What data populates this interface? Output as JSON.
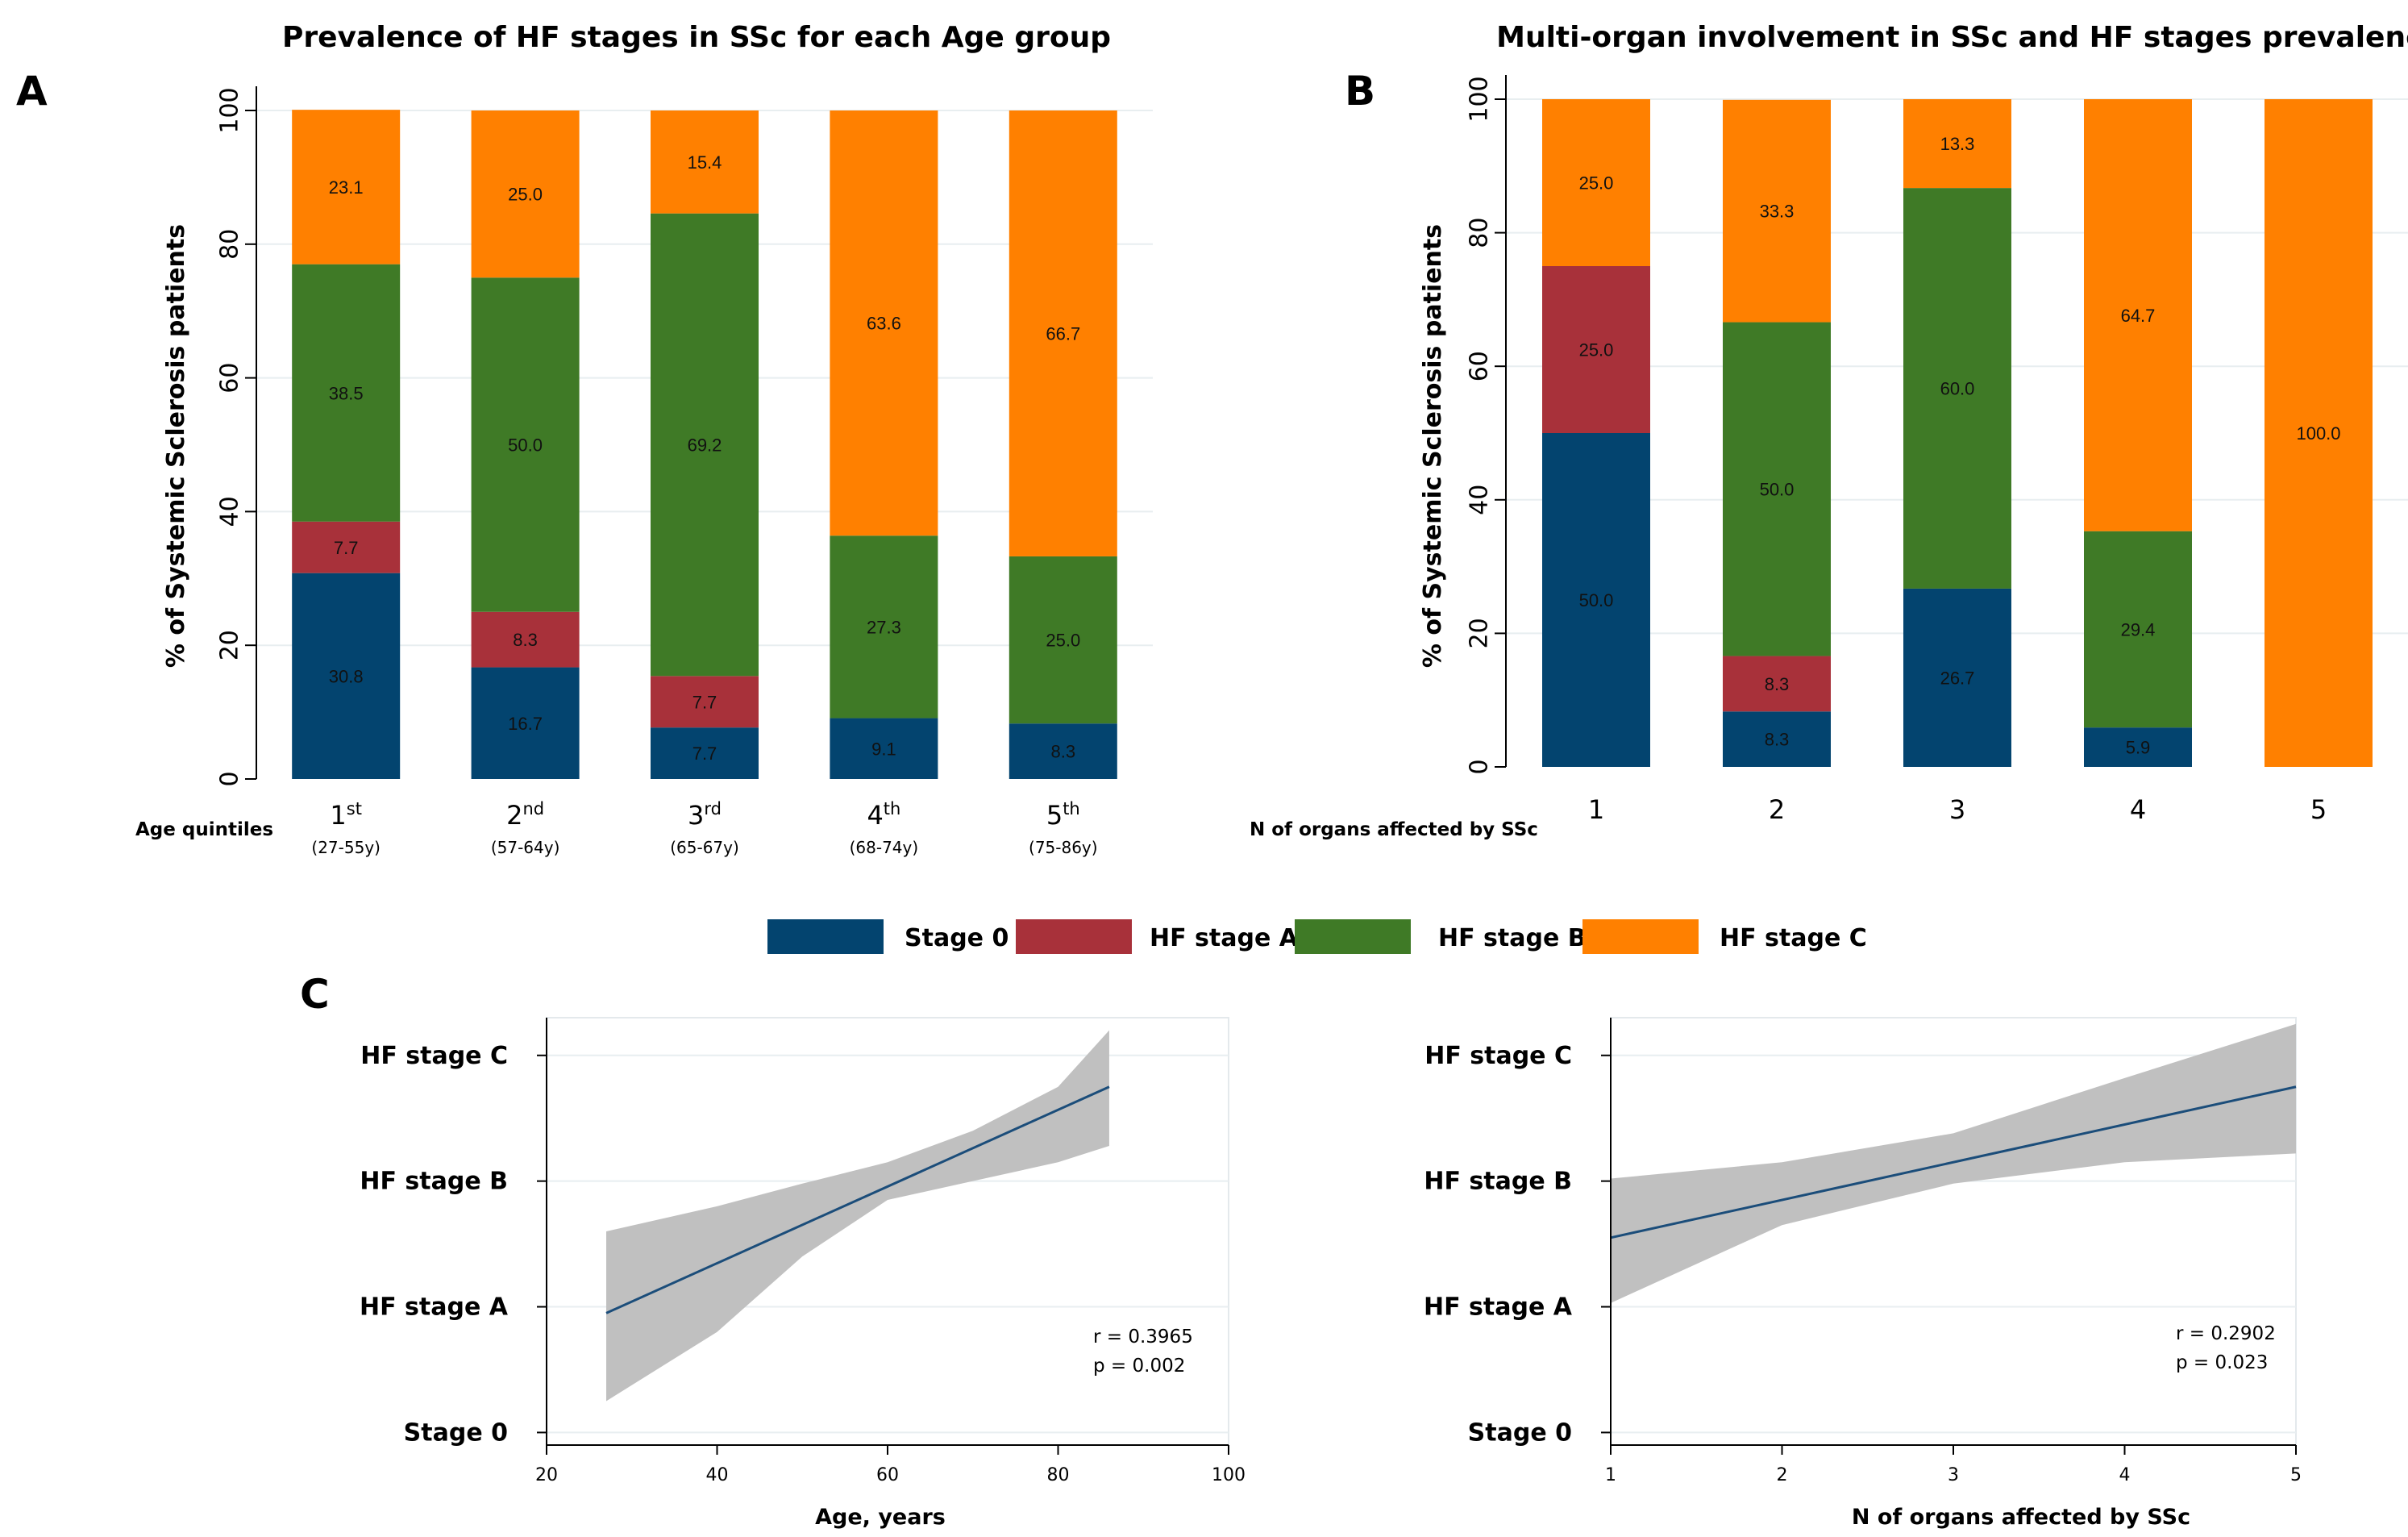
{
  "figure": {
    "panel_a_label": "A",
    "panel_b_label": "B",
    "panel_c_label": "C",
    "colors": {
      "stage0": "#03446f",
      "hfA": "#a8313a",
      "hfB": "#3f7a26",
      "hfC": "#ff8000",
      "band": "#c0c0c0",
      "fitline": "#1b4d7a",
      "axis": "#000000",
      "grid": "#e8eef0"
    }
  },
  "legend": {
    "items": [
      {
        "key": "stage0",
        "label": "Stage 0"
      },
      {
        "key": "hfA",
        "label": "HF stage A"
      },
      {
        "key": "hfB",
        "label": "HF stage B"
      },
      {
        "key": "hfC",
        "label": "HF stage C"
      }
    ]
  },
  "chart_data": [
    {
      "id": "A",
      "type": "bar",
      "stacked": true,
      "title": "Prevalence of HF stages in SSc for each Age group",
      "ylabel": "% of Systemic Sclerosis patients",
      "xlabel": "Age quintiles",
      "ylim": [
        0,
        100
      ],
      "yticks": [
        0,
        20,
        40,
        60,
        80,
        100
      ],
      "categories": [
        {
          "num": "1",
          "sup": "st",
          "range": "(27-55y)"
        },
        {
          "num": "2",
          "sup": "nd",
          "range": "(57-64y)"
        },
        {
          "num": "3",
          "sup": "rd",
          "range": "(65-67y)"
        },
        {
          "num": "4",
          "sup": "th",
          "range": "(68-74y)"
        },
        {
          "num": "5",
          "sup": "th",
          "range": "(75-86y)"
        }
      ],
      "series": [
        {
          "key": "stage0",
          "name": "Stage 0",
          "values": [
            30.8,
            16.7,
            7.7,
            9.1,
            8.3
          ]
        },
        {
          "key": "hfA",
          "name": "HF stage A",
          "values": [
            7.7,
            8.3,
            7.7,
            0,
            0
          ]
        },
        {
          "key": "hfB",
          "name": "HF stage B",
          "values": [
            38.5,
            50.0,
            69.2,
            27.3,
            25.0
          ]
        },
        {
          "key": "hfC",
          "name": "HF stage C",
          "values": [
            23.1,
            25.0,
            15.4,
            63.6,
            66.7
          ]
        }
      ]
    },
    {
      "id": "B",
      "type": "bar",
      "stacked": true,
      "title": "Multi-organ involvement in SSc and HF stages prevalence",
      "ylabel": "% of Systemic Sclerosis patients",
      "xlabel": "N of organs affected by SSc",
      "ylim": [
        0,
        100
      ],
      "yticks": [
        0,
        20,
        40,
        60,
        80,
        100
      ],
      "categories": [
        "1",
        "2",
        "3",
        "4",
        "5"
      ],
      "series": [
        {
          "key": "stage0",
          "name": "Stage 0",
          "values": [
            50.0,
            8.3,
            26.7,
            5.9,
            0
          ]
        },
        {
          "key": "hfA",
          "name": "HF stage A",
          "values": [
            25.0,
            8.3,
            0,
            0,
            0
          ]
        },
        {
          "key": "hfB",
          "name": "HF stage B",
          "values": [
            0,
            50.0,
            60.0,
            29.4,
            0
          ]
        },
        {
          "key": "hfC",
          "name": "HF stage C",
          "values": [
            25.0,
            33.3,
            13.3,
            64.7,
            100.0
          ]
        }
      ]
    },
    {
      "id": "C1",
      "type": "line",
      "xlabel": "Age, years",
      "xlim": [
        20,
        100
      ],
      "xticks": [
        20,
        40,
        60,
        80,
        100
      ],
      "ylim": [
        -0.1,
        3.3
      ],
      "ytick_labels": [
        "Stage 0",
        "HF stage A",
        "HF stage B",
        "HF stage C"
      ],
      "fit": {
        "x": [
          27,
          86
        ],
        "y": [
          0.95,
          2.75
        ]
      },
      "ci_band": {
        "x": [
          27,
          40,
          50,
          60,
          70,
          80,
          86
        ],
        "upper": [
          1.6,
          1.8,
          1.98,
          2.15,
          2.4,
          2.75,
          3.2
        ],
        "lower": [
          0.25,
          0.8,
          1.4,
          1.85,
          2.0,
          2.15,
          2.28
        ]
      },
      "annotation": {
        "r": "r = 0.3965",
        "p": "p = 0.002"
      }
    },
    {
      "id": "C2",
      "type": "line",
      "xlabel": "N of organs affected by SSc",
      "xlim": [
        1,
        5
      ],
      "xticks": [
        1,
        2,
        3,
        4,
        5
      ],
      "ylim": [
        -0.1,
        3.3
      ],
      "ytick_labels": [
        "Stage 0",
        "HF stage A",
        "HF stage B",
        "HF stage C"
      ],
      "fit": {
        "x": [
          1,
          5
        ],
        "y": [
          1.55,
          2.75
        ]
      },
      "ci_band": {
        "x": [
          1,
          2,
          3,
          4,
          5
        ],
        "upper": [
          2.02,
          2.15,
          2.38,
          2.82,
          3.25
        ],
        "lower": [
          1.03,
          1.65,
          1.98,
          2.15,
          2.22
        ]
      },
      "annotation": {
        "r": "r = 0.2902",
        "p": "p = 0.023"
      }
    }
  ]
}
